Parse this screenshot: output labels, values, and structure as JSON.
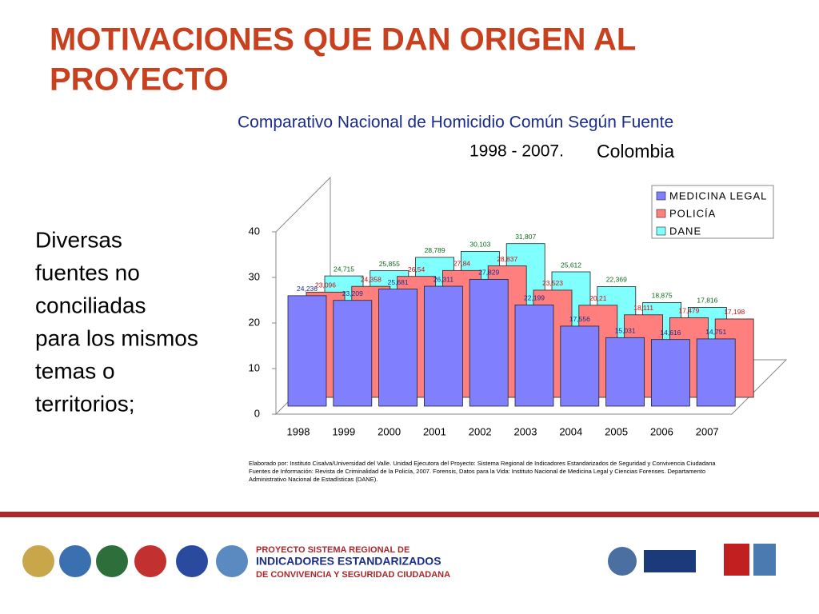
{
  "slide": {
    "title": "MOTIVACIONES QUE DAN ORIGEN AL PROYECTO",
    "body": "Diversas fuentes no conciliadas para los mismos temas o territorios;",
    "footer": [
      "PROYECTO SISTEMA REGIONAL DE",
      "INDICADORES ESTANDARIZADOS",
      "DE CONVIVENCIA Y SEGURIDAD  CIUDADANA"
    ]
  },
  "chart_data": {
    "type": "bar3d",
    "title": "Comparativo Nacional de Homicidio Común Según Fuente",
    "subtitle": "1998 - 2007.",
    "region": "Colombia",
    "categories": [
      "1998",
      "1999",
      "2000",
      "2001",
      "2002",
      "2003",
      "2004",
      "2005",
      "2006",
      "2007"
    ],
    "series": [
      {
        "name": "MEDICINA LEGAL",
        "color": "#8080ff",
        "values": [
          24.236,
          23.209,
          25.681,
          26.311,
          27.829,
          22.199,
          17.556,
          15.031,
          14.616,
          14.751
        ],
        "value_labels": [
          "24,236",
          "23,209",
          "25,681",
          "26,311",
          "27,829",
          "22,199",
          "17,556",
          "15,031",
          "14,616",
          "14,751"
        ]
      },
      {
        "name": "POLICÍA",
        "color": "#ff7f7f",
        "values": [
          23.096,
          24.358,
          26.54,
          27.84,
          28.837,
          23.523,
          20.21,
          18.111,
          17.479,
          17.198
        ],
        "value_labels": [
          "23,096",
          "24,358",
          "26,54",
          "27,84",
          "28,837",
          "23,523",
          "20,21",
          "18,111",
          "17,479",
          "17,198"
        ]
      },
      {
        "name": "DANE",
        "color": "#80ffff",
        "values": [
          24.715,
          25.855,
          28.789,
          30.103,
          31.807,
          25.612,
          22.369,
          18.875,
          17.816,
          null
        ],
        "value_labels": [
          "24,715",
          "25,855",
          "28,789",
          "30,103",
          "31,807",
          "25,612",
          "22,369",
          "18,875",
          "17,816",
          null
        ]
      }
    ],
    "ylim": [
      0,
      40
    ],
    "yticks": [
      0,
      10,
      20,
      30,
      40
    ],
    "notes": [
      "Elaborado por: Instituto Cisalva/Universidad del Valle. Unidad Ejecutora del Proyecto: Sistema Regional de Indicadores Estandarizados de Seguridad y Convivencia Ciudadana",
      "Fuentes de Información: Revista de Criminalidad de la Policía, 2007. Forensis, Datos para la Vida: Instituto Nacional de Medicina Legal y Ciencias Forenses. Departamento",
      "Administrativo Nacional de Estadísticas (DANE)."
    ]
  }
}
